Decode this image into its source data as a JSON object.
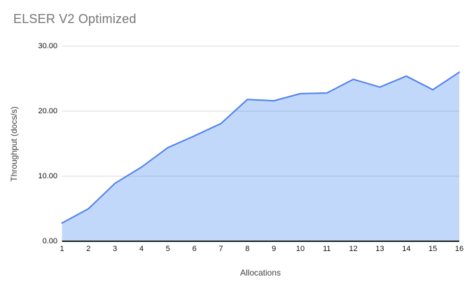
{
  "page": {
    "background": "#ffffff"
  },
  "chart_data": {
    "type": "area",
    "title": "ELSER V2 Optimized",
    "xlabel": "Allocations",
    "ylabel": "Throughput (docs/s)",
    "categories": [
      "1",
      "2",
      "3",
      "4",
      "5",
      "6",
      "7",
      "8",
      "9",
      "10",
      "11",
      "12",
      "13",
      "14",
      "15",
      "16"
    ],
    "series": [
      {
        "values": [
          2.8,
          5.0,
          8.9,
          11.4,
          14.4,
          16.2,
          18.1,
          21.8,
          21.6,
          22.7,
          22.8,
          24.9,
          23.7,
          25.4,
          23.3,
          26.0
        ]
      }
    ],
    "ylim": [
      0,
      30
    ],
    "yticks": [
      0,
      10,
      20,
      30
    ],
    "ytick_labels": [
      "0.00",
      "10.00",
      "20.00",
      "30.00"
    ],
    "grid": "horizontal-only",
    "legend_position": "none"
  },
  "colors": {
    "line": "#4e80ee",
    "fill": "rgba(66,133,244,0.32)",
    "gridline": "#d9d9d9",
    "axis_line": "#1f1f1f",
    "title_text": "#757575",
    "tick_text": "#111111",
    "axis_title_text": "#424242",
    "background": "#ffffff"
  }
}
